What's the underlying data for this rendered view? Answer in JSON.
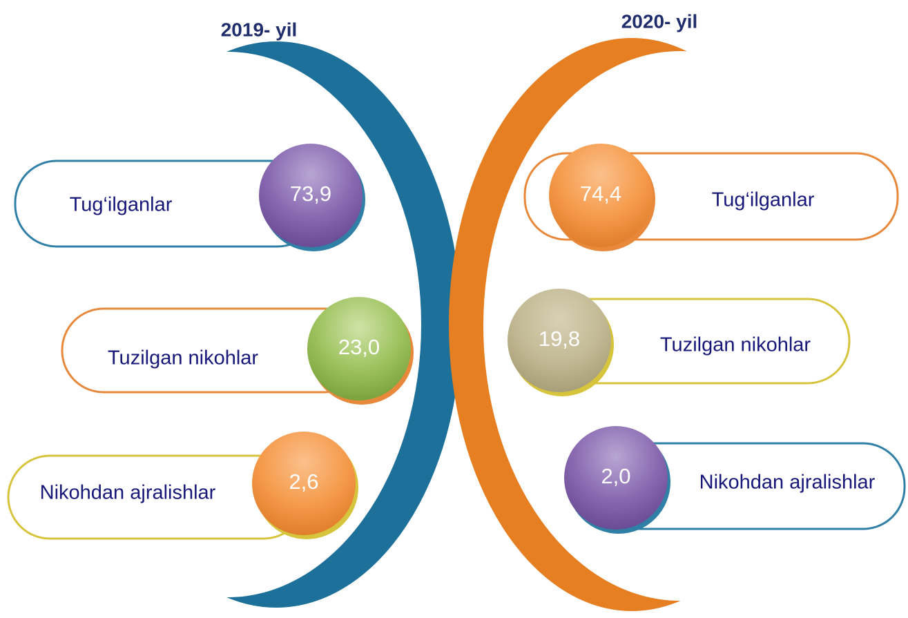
{
  "panels": [
    {
      "title": "2019- yil",
      "items": [
        {
          "label": "Tug‘ilganlar",
          "value": "73,9"
        },
        {
          "label": "Tuzilgan nikohlar",
          "value": "23,0"
        },
        {
          "label": "Nikohdan ajralishlar",
          "value": "2,6"
        }
      ]
    },
    {
      "title": "2020- yil",
      "items": [
        {
          "label": "Tug‘ilganlar",
          "value": "74,4"
        },
        {
          "label": "Tuzilgan nikohlar",
          "value": "19,8"
        },
        {
          "label": "Nikohdan ajralishlar",
          "value": "2,0"
        }
      ]
    }
  ]
}
